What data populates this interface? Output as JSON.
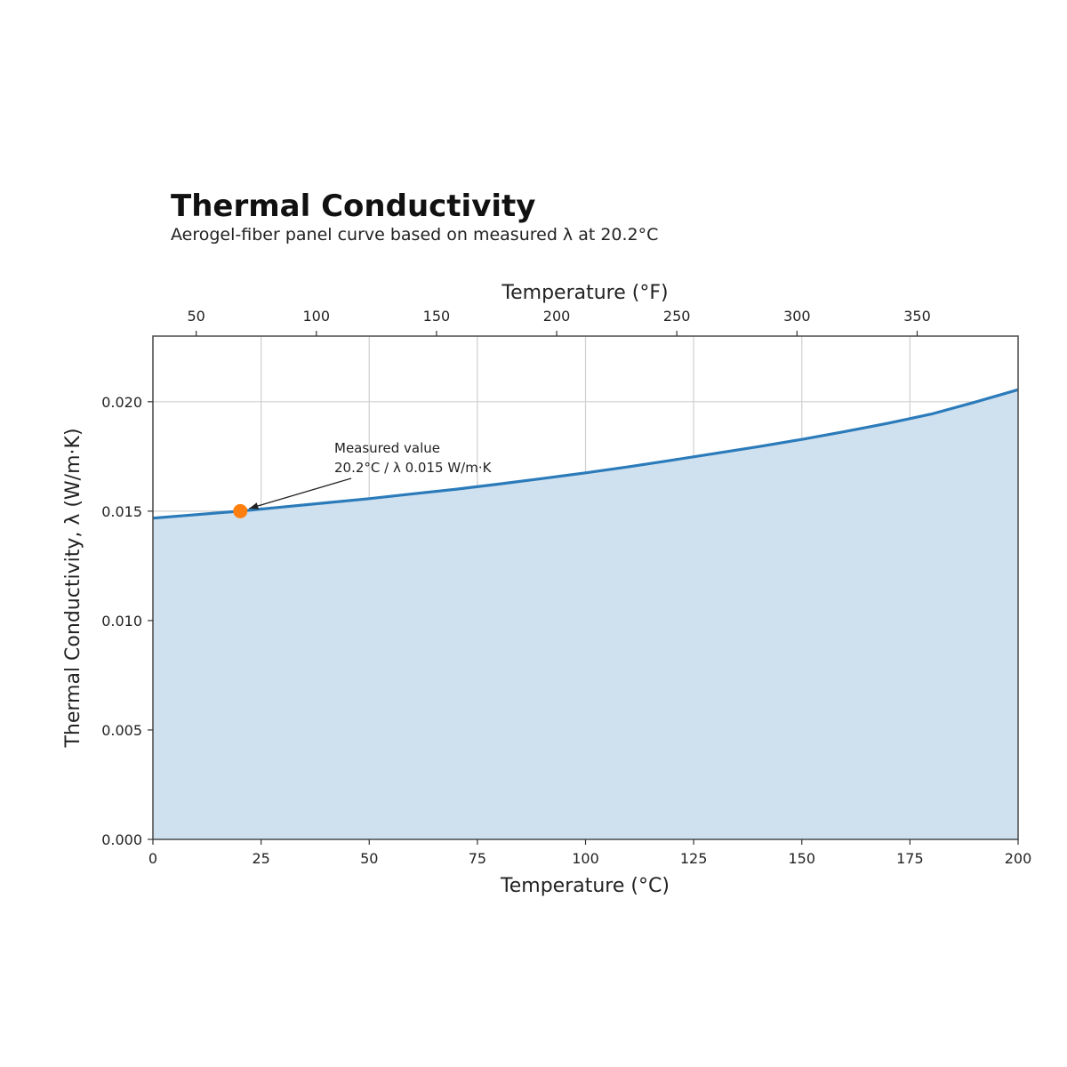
{
  "chart_data": {
    "type": "area",
    "title": "Thermal Conductivity",
    "subtitle": "Aerogel-fiber panel curve based on measured λ at 20.2°C",
    "xlabel": "Temperature (°C)",
    "x2label": "Temperature (°F)",
    "ylabel": "Thermal Conductivity, λ (W/m·K)",
    "xlim": [
      0,
      200
    ],
    "ylim": [
      0,
      0.023
    ],
    "grid": true,
    "xticks": [
      "0",
      "25",
      "50",
      "75",
      "100",
      "125",
      "150",
      "175",
      "200"
    ],
    "yticks": [
      "0.000",
      "0.005",
      "0.010",
      "0.015",
      "0.020"
    ],
    "x2ticks": [
      "50",
      "100",
      "150",
      "200",
      "250",
      "300",
      "350"
    ],
    "series": [
      {
        "x": [
          0,
          10,
          20,
          30,
          40,
          50,
          60,
          70,
          80,
          90,
          100,
          110,
          120,
          130,
          140,
          150,
          160,
          170,
          180,
          190,
          200
        ],
        "y": [
          0.01468,
          0.01484,
          0.015,
          0.01519,
          0.01538,
          0.01557,
          0.01579,
          0.016,
          0.01624,
          0.01649,
          0.01675,
          0.01703,
          0.01733,
          0.01764,
          0.01795,
          0.01828,
          0.01864,
          0.01902,
          0.01944,
          0.01998,
          0.02055
        ]
      }
    ],
    "measured_point": {
      "x": 20.2,
      "y": 0.015
    },
    "annotation": {
      "line1": "Measured value",
      "line2": "20.2°C / λ 0.015 W/m·K"
    },
    "colors": {
      "line": "#2b7bba",
      "fill": "#cfe0ef",
      "marker": "#ff7f0e"
    }
  }
}
